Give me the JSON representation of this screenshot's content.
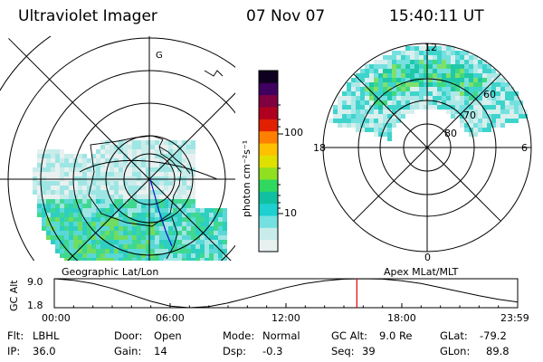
{
  "header": {
    "instrument": "Ultraviolet Imager",
    "date": "07 Nov 07",
    "time": "15:40:11 UT"
  },
  "left_map": {
    "caption": "Geographic Lat/Lon",
    "annotation": "G"
  },
  "right_map": {
    "caption": "Apex MLat/MLT",
    "mlt_labels": [
      "12",
      "18",
      "6",
      "0"
    ],
    "mlat_labels": [
      "60",
      "70",
      "80"
    ]
  },
  "colorbar": {
    "unit_label": "photon cm⁻²s⁻¹",
    "ticks": [
      "100",
      "10"
    ],
    "colors": [
      "#e8f0f0",
      "#c8ecea",
      "#74e0e0",
      "#1ed0d0",
      "#10c0a0",
      "#30d860",
      "#90e020",
      "#e0e000",
      "#ffc000",
      "#ff8000",
      "#e02000",
      "#b00020",
      "#800040",
      "#400060",
      "#100020"
    ]
  },
  "orbit_panel": {
    "y_axis_label": "GC Alt",
    "y_ticks": [
      "9.0",
      "1.8"
    ],
    "x_ticks": [
      "00:00",
      "06:00",
      "12:00",
      "18:00",
      "23:59"
    ],
    "current_time_color": "#e00000"
  },
  "chart_data": {
    "type": "line",
    "title": "",
    "xlabel": "",
    "ylabel": "GC Alt",
    "x": [
      0,
      1,
      2,
      3,
      4,
      5,
      6,
      7,
      8,
      9,
      10,
      11,
      12,
      13,
      14,
      15,
      16,
      17,
      18,
      19,
      20,
      21,
      22,
      23,
      24
    ],
    "series": [
      {
        "values": [
          9.0,
          8.6,
          7.8,
          6.6,
          5.0,
          3.4,
          2.2,
          1.8,
          2.1,
          3.0,
          4.2,
          5.5,
          6.8,
          7.8,
          8.5,
          8.9,
          9.0,
          8.9,
          8.5,
          7.8,
          6.8,
          5.8,
          4.8,
          3.9,
          3.2
        ]
      }
    ],
    "ylim": [
      1.8,
      9.0
    ],
    "xlim": [
      0,
      24
    ],
    "current_time_hours": 15.67
  },
  "footer": {
    "row1": [
      {
        "label": "Flt:",
        "value": "LBHL"
      },
      {
        "label": "Door:",
        "value": "Open"
      },
      {
        "label": "Mode:",
        "value": "Normal"
      },
      {
        "label": "GC Alt:",
        "value": "9.0 Re"
      },
      {
        "label": "GLat:",
        "value": "-79.2"
      }
    ],
    "row2": [
      {
        "label": "IP:",
        "value": "36.0"
      },
      {
        "label": "Gain:",
        "value": "14"
      },
      {
        "label": "Dsp:",
        "value": "-0.3"
      },
      {
        "label": "Seq:",
        "value": "39"
      },
      {
        "label": "GLon:",
        "value": "89.8"
      }
    ]
  }
}
